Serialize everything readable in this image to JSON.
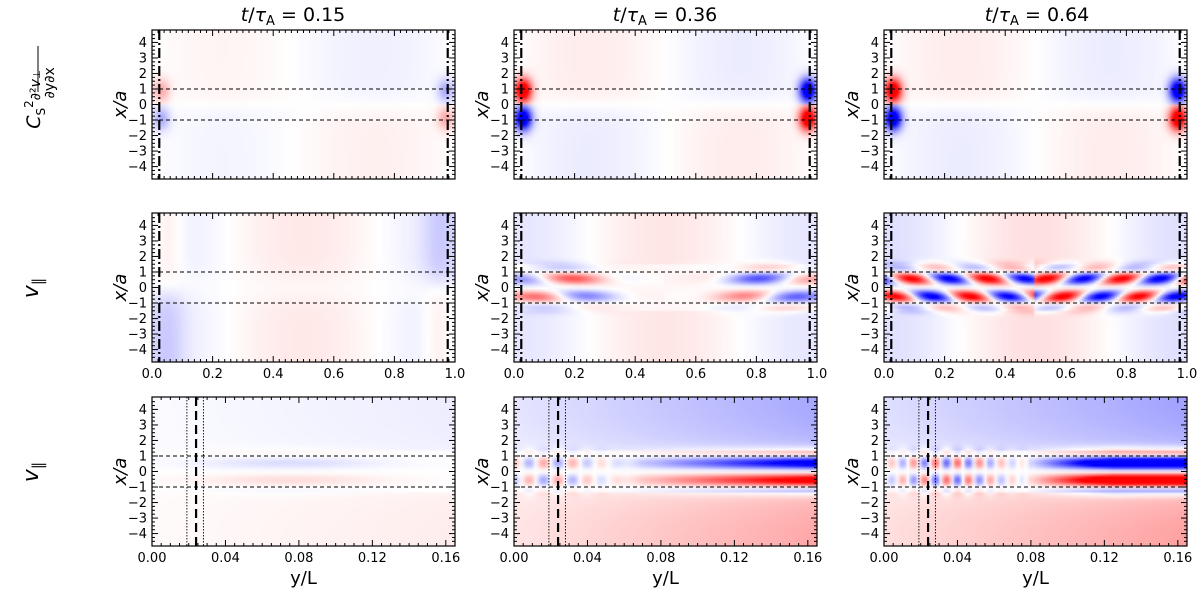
{
  "chart_data": {
    "type": "heatmap",
    "column_titles": [
      "t/τ_A = 0.15",
      "t/τ_A = 0.36",
      "t/τ_A = 0.64"
    ],
    "column_times": [
      0.15,
      0.36,
      0.64
    ],
    "row_labels": [
      "C_s² ∂²v⊥/∂y∂x",
      "v∥",
      "v∥"
    ],
    "ylabel": "x/a",
    "xlabel_bottom": "y/L",
    "ylim": [
      -4.8,
      4.8
    ],
    "yticks": [
      -4,
      -3,
      -2,
      -1,
      0,
      1,
      2,
      3,
      4
    ],
    "tube_boundaries_x_over_a": [
      -1,
      1
    ],
    "rows": [
      {
        "name": "Cs2 d2vperp/dydx",
        "xlim": [
          0,
          1
        ],
        "xticks": [],
        "footpoint_y_over_L": [
          0.024,
          0.976
        ],
        "colormap": "bwr",
        "panels": [
          {
            "time": 0.15,
            "max_amplitude": 0.25
          },
          {
            "time": 0.36,
            "max_amplitude": 1.0
          },
          {
            "time": 0.64,
            "max_amplitude": 1.0
          }
        ]
      },
      {
        "name": "v_par",
        "xlim": [
          0,
          1
        ],
        "xticks": [
          0.0,
          0.2,
          0.4,
          0.6,
          0.8,
          1.0
        ],
        "tick_labels": [
          "0.0",
          "0.2",
          "0.4",
          "0.6",
          "0.8",
          "1.0"
        ],
        "footpoint_y_over_L": [
          0.024,
          0.976
        ],
        "colormap": "bwr",
        "panels": [
          {
            "time": 0.15,
            "max_amplitude": 0.25
          },
          {
            "time": 0.36,
            "max_amplitude": 0.8
          },
          {
            "time": 0.64,
            "max_amplitude": 1.0
          }
        ]
      },
      {
        "name": "v_par zoom",
        "xlim": [
          0,
          0.165
        ],
        "xticks": [
          0.0,
          0.04,
          0.08,
          0.12,
          0.16
        ],
        "tick_labels": [
          "0.00",
          "0.04",
          "0.08",
          "0.12",
          "0.16"
        ],
        "footpoint_y_over_L": [
          0.024
        ],
        "footpoint_layer_y_over_L": [
          0.019,
          0.028
        ],
        "colormap": "bwr",
        "panels": [
          {
            "time": 0.15,
            "max_amplitude": 0.3
          },
          {
            "time": 0.36,
            "max_amplitude": 1.0
          },
          {
            "time": 0.64,
            "max_amplitude": 1.0
          }
        ]
      }
    ]
  }
}
